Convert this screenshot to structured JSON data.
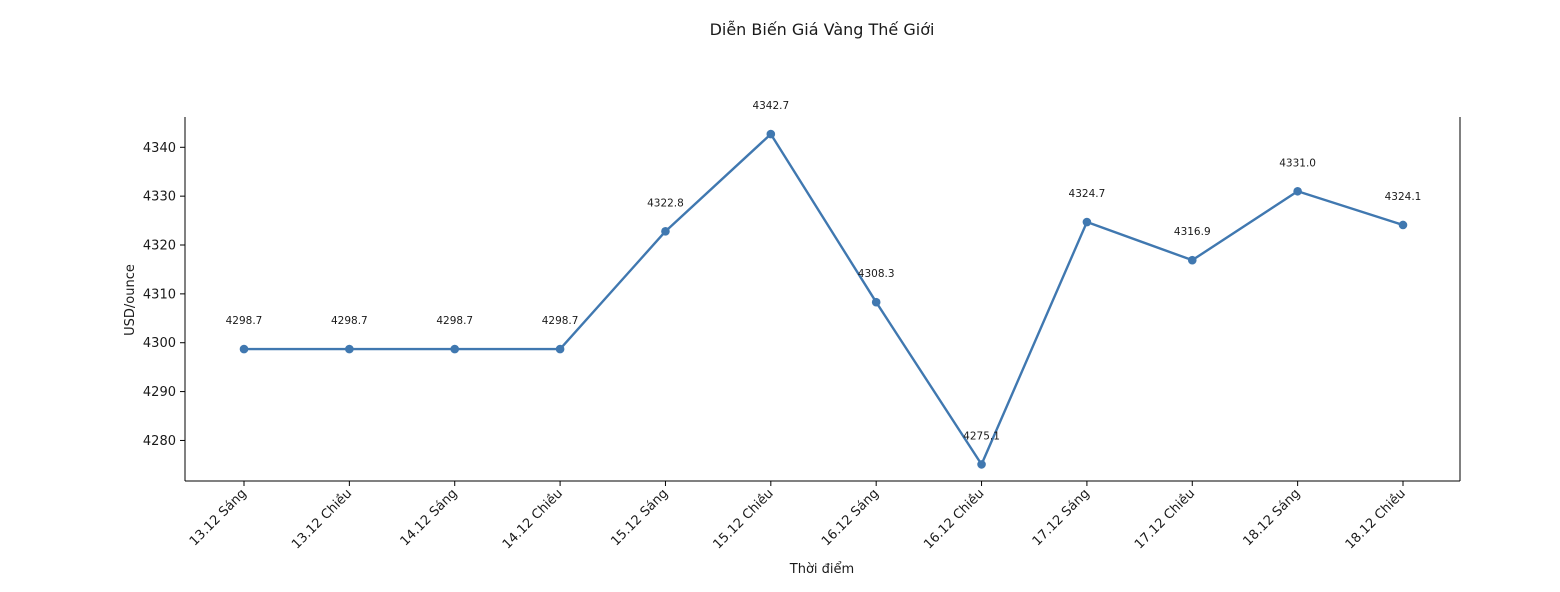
{
  "chart_data": {
    "type": "line",
    "title": "Diễn Biến Giá Vàng Thế Giới",
    "xlabel": "Thời điểm",
    "ylabel": "USD/ounce",
    "categories": [
      "13.12 Sáng",
      "13.12 Chiều",
      "14.12 Sáng",
      "14.12 Chiều",
      "15.12 Sáng",
      "15.12 Chiều",
      "16.12 Sáng",
      "16.12 Chiều",
      "17.12 Sáng",
      "17.12 Chiều",
      "18.12 Sáng",
      "18.12 Chiều"
    ],
    "series": [
      {
        "values": [
          4298.7,
          4298.7,
          4298.7,
          4298.7,
          4322.8,
          4342.7,
          4308.3,
          4275.1,
          4324.7,
          4316.9,
          4331.0,
          4324.1
        ],
        "color": "#4078b0"
      }
    ],
    "data_labels": [
      "4298.7",
      "4298.7",
      "4298.7",
      "4298.7",
      "4322.8",
      "4342.7",
      "4308.3",
      "4275.1",
      "4324.7",
      "4316.9",
      "4331.0",
      "4324.1"
    ],
    "yticks": [
      4280,
      4290,
      4300,
      4310,
      4320,
      4330,
      4340
    ],
    "ylim": [
      4271.7,
      4346.2
    ],
    "grid": false,
    "legend": "none",
    "spines": "left-bottom-right"
  }
}
